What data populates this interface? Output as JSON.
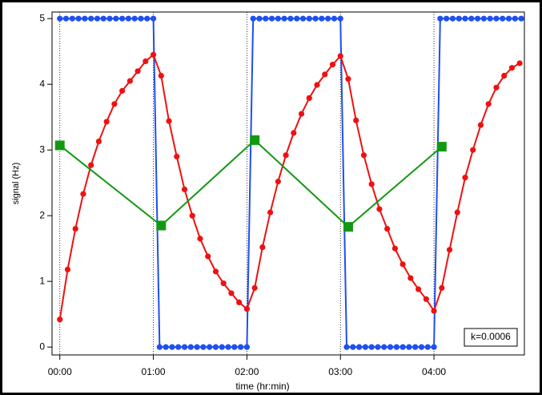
{
  "chart_data": {
    "type": "line",
    "xlabel": "time (hr:min)",
    "ylabel": "signal (Hz)",
    "annotation": "k=0.0006",
    "xlim": [
      -5,
      298
    ],
    "ylim": [
      -0.12,
      5.1
    ],
    "xticks": [
      {
        "value": 0,
        "label": "00:00"
      },
      {
        "value": 60,
        "label": "01:00"
      },
      {
        "value": 120,
        "label": "02:00"
      },
      {
        "value": 180,
        "label": "03:00"
      },
      {
        "value": 240,
        "label": "04:00"
      }
    ],
    "yticks": [
      0,
      1,
      2,
      3,
      4,
      5
    ],
    "vlines": [
      0,
      60,
      120,
      180,
      240
    ],
    "series": [
      {
        "color": "#1f4fee",
        "marker": "circle",
        "x": [
          0,
          4,
          8,
          12,
          16,
          20,
          24,
          28,
          32,
          36,
          40,
          44,
          48,
          52,
          56,
          60,
          64,
          68,
          72,
          76,
          80,
          84,
          88,
          92,
          96,
          100,
          104,
          108,
          112,
          116,
          120,
          124,
          128,
          132,
          136,
          140,
          144,
          148,
          152,
          156,
          160,
          164,
          168,
          172,
          176,
          180,
          184,
          188,
          192,
          196,
          200,
          204,
          208,
          212,
          216,
          220,
          224,
          228,
          232,
          236,
          240,
          244,
          248,
          252,
          256,
          260,
          264,
          268,
          272,
          276,
          280,
          284,
          288,
          292,
          296
        ],
        "values": [
          5,
          5,
          5,
          5,
          5,
          5,
          5,
          5,
          5,
          5,
          5,
          5,
          5,
          5,
          5,
          5,
          0,
          0,
          0,
          0,
          0,
          0,
          0,
          0,
          0,
          0,
          0,
          0,
          0,
          0,
          0,
          5,
          5,
          5,
          5,
          5,
          5,
          5,
          5,
          5,
          5,
          5,
          5,
          5,
          5,
          5,
          0,
          0,
          0,
          0,
          0,
          0,
          0,
          0,
          0,
          0,
          0,
          0,
          0,
          0,
          0,
          5,
          5,
          5,
          5,
          5,
          5,
          5,
          5,
          5,
          5,
          5,
          5,
          5,
          5
        ]
      },
      {
        "color": "#ee1111",
        "marker": "circle",
        "x": [
          0,
          5,
          10,
          15,
          20,
          25,
          30,
          35,
          40,
          45,
          50,
          55,
          60,
          65,
          70,
          75,
          80,
          85,
          90,
          95,
          100,
          105,
          110,
          115,
          120,
          125,
          130,
          135,
          140,
          145,
          150,
          155,
          160,
          165,
          170,
          175,
          180,
          185,
          190,
          195,
          200,
          205,
          210,
          215,
          220,
          225,
          230,
          235,
          240,
          245,
          250,
          255,
          260,
          265,
          270,
          275,
          280,
          285,
          290,
          295
        ],
        "values": [
          0.42,
          1.18,
          1.8,
          2.33,
          2.77,
          3.13,
          3.43,
          3.7,
          3.9,
          4.05,
          4.2,
          4.35,
          4.45,
          4.13,
          3.44,
          2.9,
          2.4,
          2.0,
          1.65,
          1.38,
          1.15,
          0.97,
          0.82,
          0.68,
          0.58,
          0.9,
          1.52,
          2.05,
          2.52,
          2.92,
          3.26,
          3.55,
          3.79,
          3.99,
          4.15,
          4.3,
          4.43,
          4.08,
          3.45,
          2.92,
          2.48,
          2.1,
          1.8,
          1.5,
          1.26,
          1.05,
          0.88,
          0.73,
          0.55,
          0.9,
          1.48,
          2.05,
          2.58,
          3.0,
          3.38,
          3.7,
          3.95,
          4.13,
          4.25,
          4.32
        ]
      },
      {
        "color": "#129912",
        "marker": "square",
        "x": [
          0,
          65,
          125,
          185,
          245
        ],
        "values": [
          3.07,
          1.85,
          3.15,
          1.83,
          3.05
        ]
      }
    ]
  }
}
